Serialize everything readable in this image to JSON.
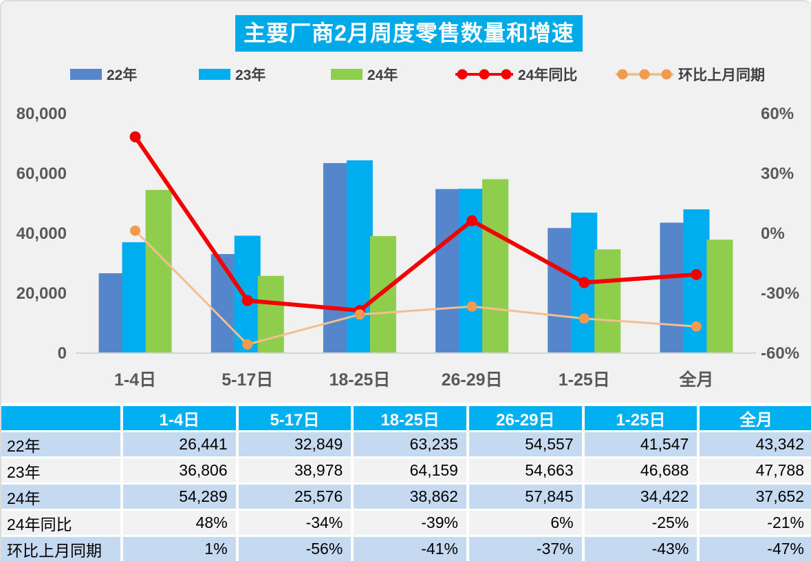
{
  "title": "主要厂商2月周度零售数量和增速",
  "colors": {
    "title_bg": "#00A9E8",
    "header_bg": "#00B0F0",
    "bar22": "#5586CC",
    "bar23": "#00AEEF",
    "bar24": "#8FCE4C",
    "line_yoy": "#F40000",
    "line_mom": "#F6BE8F",
    "line_mom_marker": "#F09B4D",
    "axis_text": "#595959",
    "axis_line": "#D4D4D4",
    "legend_text": "#3F3F3F",
    "row_blue": "#C5D9F1",
    "row_gray": "#F2F2F2",
    "panel_bg": "#F1F1F2"
  },
  "legend": [
    {
      "label": "22年",
      "type": "bar",
      "color_key": "bar22"
    },
    {
      "label": "23年",
      "type": "bar",
      "color_key": "bar23"
    },
    {
      "label": "24年",
      "type": "bar",
      "color_key": "bar24"
    },
    {
      "label": "24年同比",
      "type": "line",
      "color_key": "line_yoy",
      "marker_key": "line_yoy"
    },
    {
      "label": "环比上月同期",
      "type": "line",
      "color_key": "line_mom",
      "marker_key": "line_mom_marker"
    }
  ],
  "chart_data": {
    "type": "combo",
    "categories": [
      "1-4日",
      "5-17日",
      "18-25日",
      "26-29日",
      "1-25日",
      "全月"
    ],
    "bar_series": [
      {
        "name": "22年",
        "color_key": "bar22",
        "values": [
          26441,
          32849,
          63235,
          54557,
          41547,
          43342
        ]
      },
      {
        "name": "23年",
        "color_key": "bar23",
        "values": [
          36806,
          38978,
          64159,
          54663,
          46688,
          47788
        ]
      },
      {
        "name": "24年",
        "color_key": "bar24",
        "values": [
          54289,
          25576,
          38862,
          57845,
          34422,
          37652
        ]
      }
    ],
    "line_series": [
      {
        "name": "24年同比",
        "color_key": "line_yoy",
        "marker_key": "line_yoy",
        "stroke_width": 6,
        "marker_r": 8,
        "values_pct": [
          48,
          -34,
          -39,
          6,
          -25,
          -21
        ]
      },
      {
        "name": "环比上月同期",
        "color_key": "line_mom",
        "marker_key": "line_mom_marker",
        "stroke_width": 3,
        "marker_r": 7.5,
        "values_pct": [
          1,
          -56,
          -41,
          -37,
          -43,
          -47
        ]
      }
    ],
    "left_axis": {
      "min": 0,
      "max": 80000,
      "ticks": [
        "0",
        "20,000",
        "40,000",
        "60,000",
        "80,000"
      ]
    },
    "right_axis": {
      "min": -60,
      "max": 60,
      "ticks": [
        "-60%",
        "-30%",
        "0%",
        "30%",
        "60%"
      ]
    },
    "grid": false,
    "legend_position": "top"
  },
  "table": {
    "col_headers": [
      "",
      "1-4日",
      "5-17日",
      "18-25日",
      "26-29日",
      "1-25日",
      "全月"
    ],
    "rows": [
      {
        "label": "22年",
        "cells": [
          "26,441",
          "32,849",
          "63,235",
          "54,557",
          "41,547",
          "43,342"
        ]
      },
      {
        "label": "23年",
        "cells": [
          "36,806",
          "38,978",
          "64,159",
          "54,663",
          "46,688",
          "47,788"
        ]
      },
      {
        "label": "24年",
        "cells": [
          "54,289",
          "25,576",
          "38,862",
          "57,845",
          "34,422",
          "37,652"
        ]
      },
      {
        "label": "24年同比",
        "cells": [
          "48%",
          "-34%",
          "-39%",
          "6%",
          "-25%",
          "-21%"
        ]
      },
      {
        "label": "环比上月同期",
        "cells": [
          "1%",
          "-56%",
          "-41%",
          "-37%",
          "-43%",
          "-47%"
        ]
      }
    ]
  }
}
